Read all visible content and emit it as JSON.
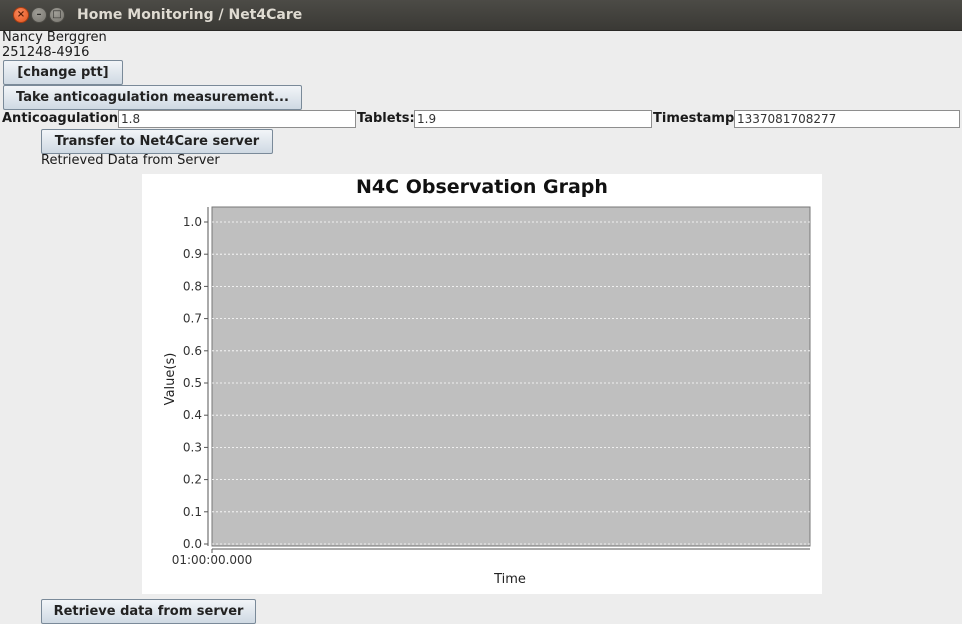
{
  "window": {
    "title": "Home Monitoring / Net4Care",
    "close_glyph": "×",
    "min_glyph": "–",
    "max_glyph": "□"
  },
  "patient": {
    "name": "Nancy Berggren",
    "cpr": "251248-4916"
  },
  "buttons": {
    "change_ptt": "[change ptt]",
    "take_measurement": "Take anticoagulation measurement...",
    "transfer": "Transfer to Net4Care server",
    "retrieve": "Retrieve data from server"
  },
  "fields": {
    "anticoagulation_label": "Anticoagulation:",
    "anticoagulation_value": "1.8",
    "tablets_label": "Tablets:",
    "tablets_value": "1.9",
    "timestamp_label": "Timestamp:",
    "timestamp_value": "1337081708277"
  },
  "status": {
    "retrieved": "Retrieved Data from Server"
  },
  "chart_data": {
    "type": "line",
    "title": "N4C Observation Graph",
    "xlabel": "Time",
    "ylabel": "Value(s)",
    "ylim": [
      0.0,
      1.0
    ],
    "yticks": [
      "0.0",
      "0.1",
      "0.2",
      "0.3",
      "0.4",
      "0.5",
      "0.6",
      "0.7",
      "0.8",
      "0.9",
      "1.0"
    ],
    "xticks": [
      "01:00:00.000"
    ],
    "series": [],
    "grid": true,
    "plot_background": "#bfbfbf",
    "grid_color": "#ffffff"
  }
}
